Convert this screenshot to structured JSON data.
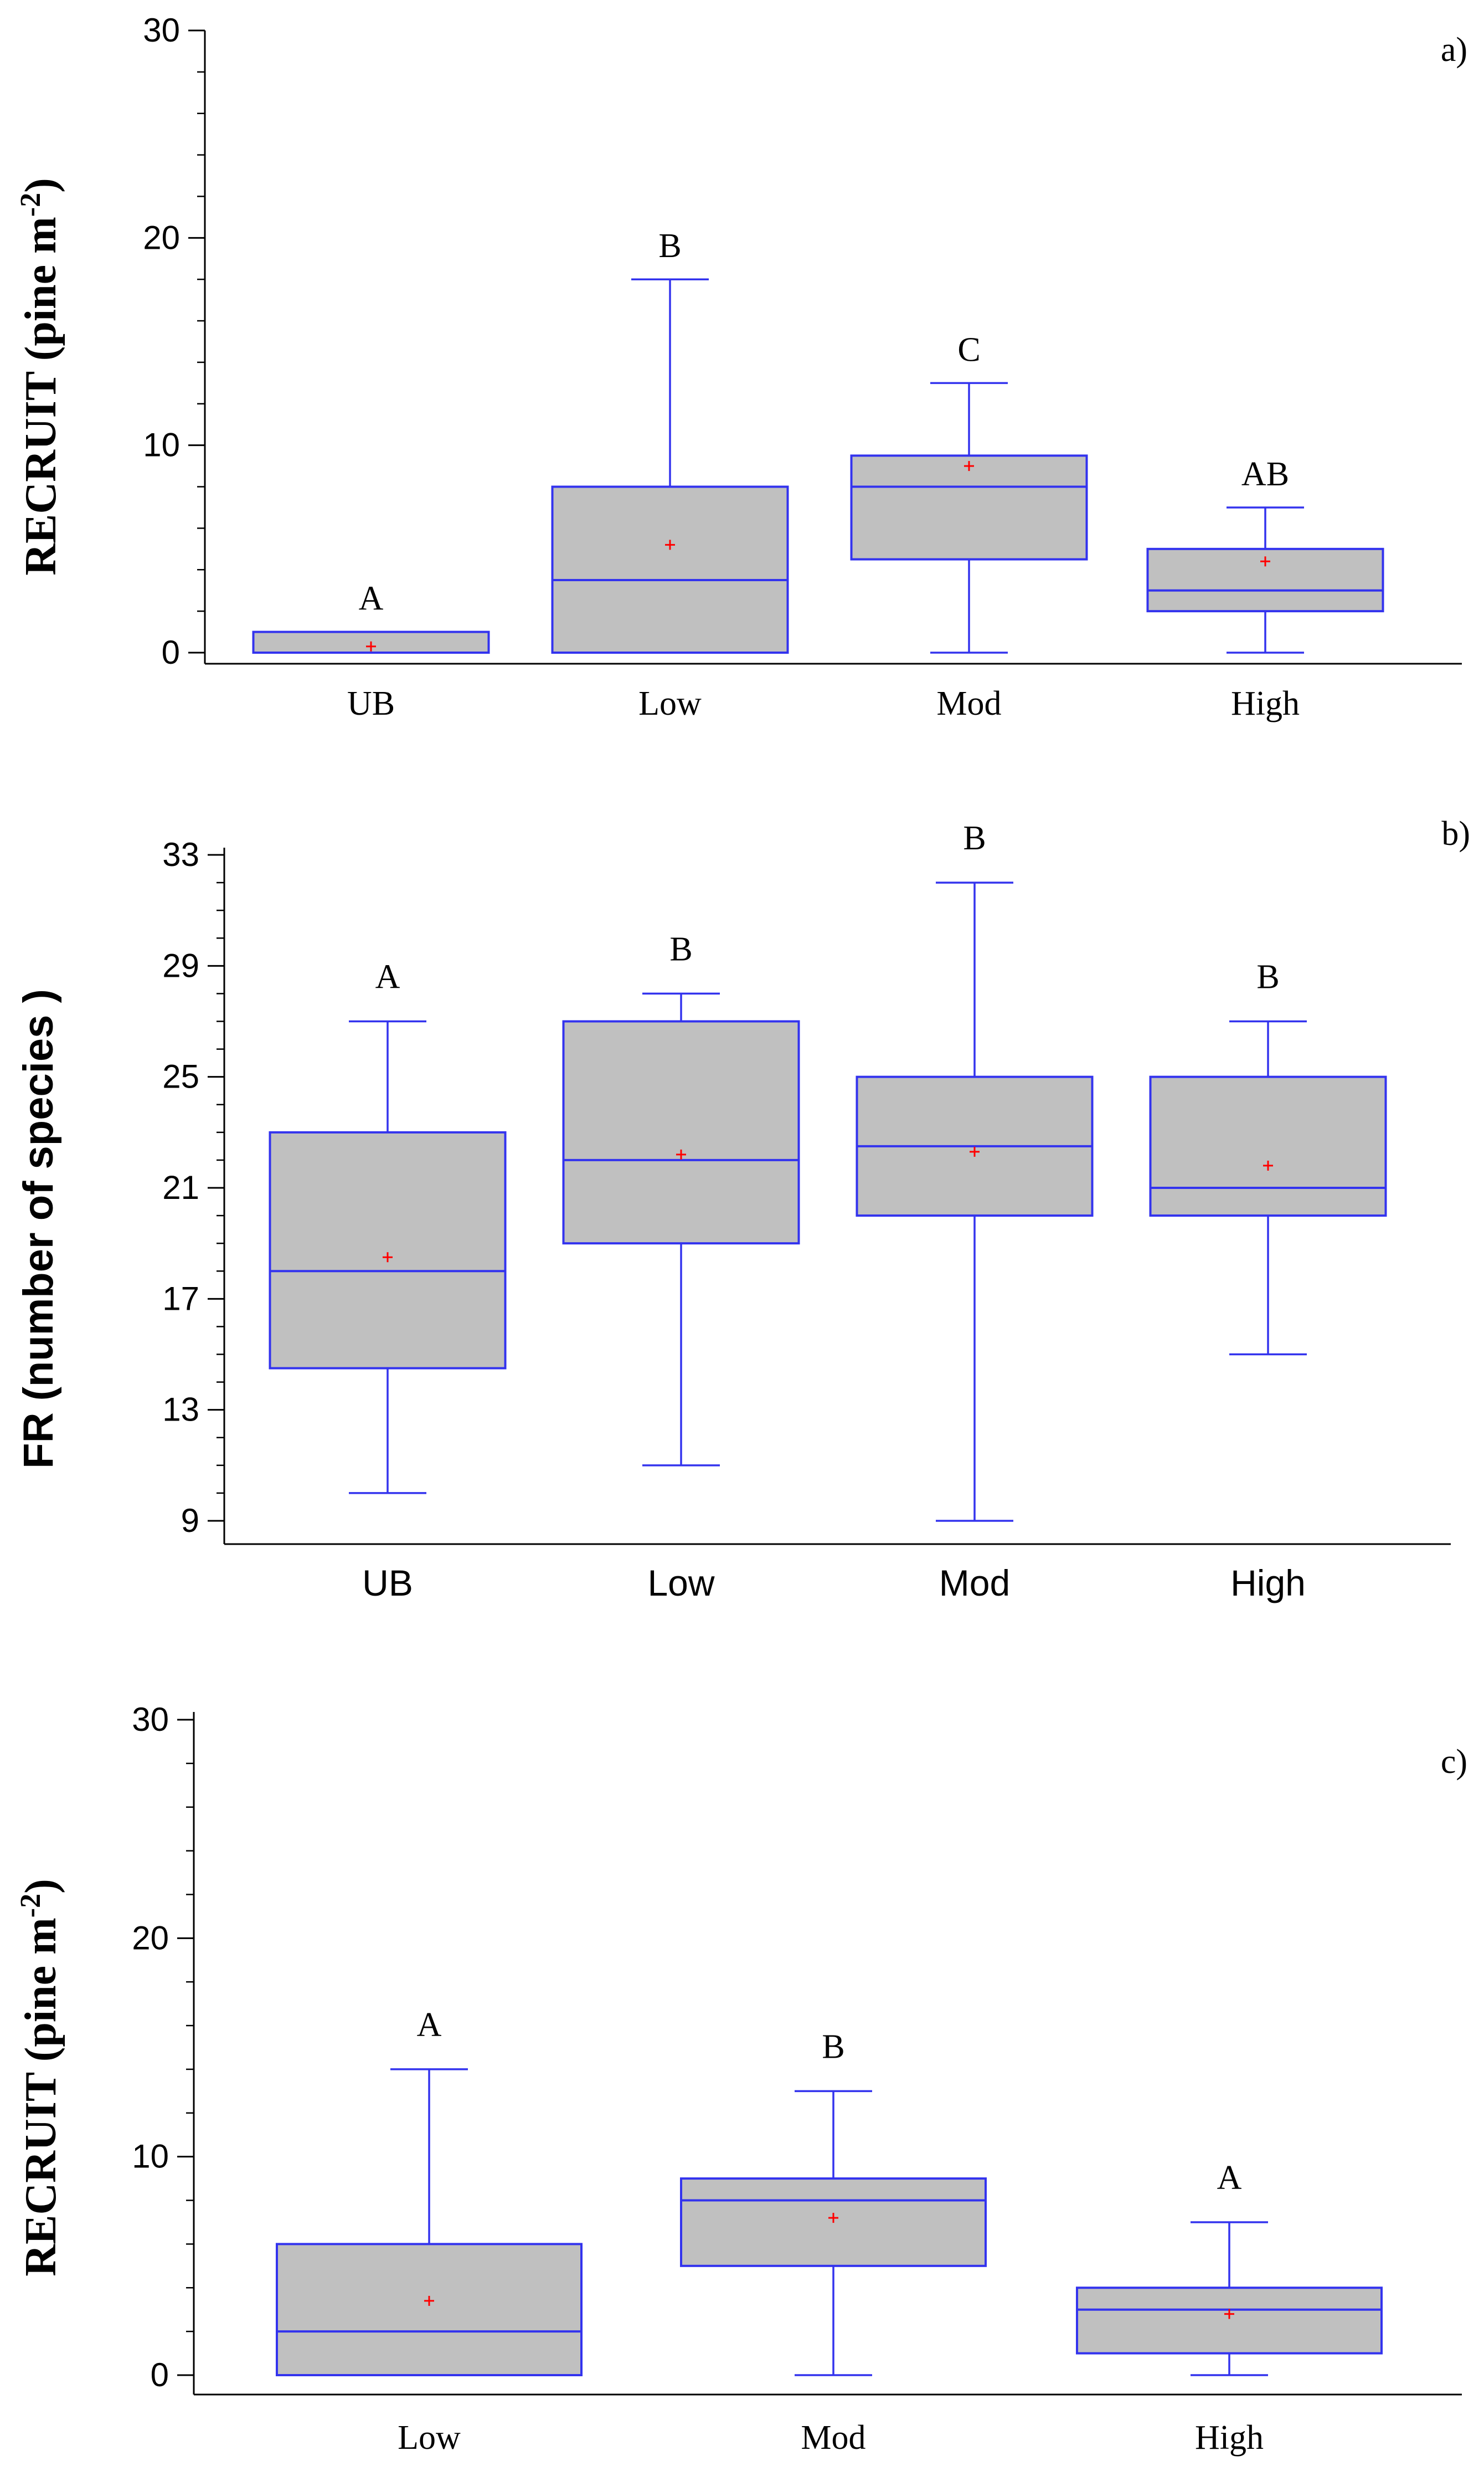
{
  "colors": {
    "box_fill": "#c0c0c0",
    "box_stroke": "#3333ee",
    "mean_marker": "#ff0000",
    "axis": "#000000"
  },
  "chart_data": [
    {
      "type": "box",
      "panel_label": "a)",
      "ylabel_main": "RECRUIT (pine m",
      "ylabel_sup": "-2",
      "ylabel_end": ")",
      "ylim": [
        0,
        30
      ],
      "yticks": [
        0,
        10,
        20,
        30
      ],
      "minor_step": 2,
      "categories": [
        "UB",
        "Low",
        "Mod",
        "High"
      ],
      "boxes": [
        {
          "category": "UB",
          "min": 0,
          "q1": 0,
          "median": 0,
          "q3": 1,
          "max": 1,
          "mean": 0.3,
          "letter": "A"
        },
        {
          "category": "Low",
          "min": 0,
          "q1": 0,
          "median": 3.5,
          "q3": 8,
          "max": 18,
          "mean": 5.2,
          "letter": "B"
        },
        {
          "category": "Mod",
          "min": 0,
          "q1": 4.5,
          "median": 8,
          "q3": 9.5,
          "max": 13,
          "mean": 9,
          "letter": "C"
        },
        {
          "category": "High",
          "min": 0,
          "q1": 2,
          "median": 3,
          "q3": 5,
          "max": 7,
          "mean": 4.4,
          "letter": "AB"
        }
      ]
    },
    {
      "type": "box",
      "panel_label": "b)",
      "ylabel_main": "FR (number of species )",
      "ylim": [
        9,
        33
      ],
      "yticks": [
        9,
        13,
        17,
        21,
        25,
        29,
        33
      ],
      "minor_step": 1,
      "categories": [
        "UB",
        "Low",
        "Mod",
        "High"
      ],
      "boxes": [
        {
          "category": "UB",
          "min": 10,
          "q1": 14.5,
          "median": 18,
          "q3": 23,
          "max": 27,
          "mean": 18.5,
          "letter": "A"
        },
        {
          "category": "Low",
          "min": 11,
          "q1": 19,
          "median": 22,
          "q3": 27,
          "max": 28,
          "mean": 22.2,
          "letter": "B"
        },
        {
          "category": "Mod",
          "min": 9,
          "q1": 20,
          "median": 22.5,
          "q3": 25,
          "max": 32,
          "mean": 22.3,
          "letter": "B"
        },
        {
          "category": "High",
          "min": 15,
          "q1": 20,
          "median": 21,
          "q3": 25,
          "max": 27,
          "mean": 21.8,
          "letter": "B"
        }
      ]
    },
    {
      "type": "box",
      "panel_label": "c)",
      "ylabel_main": "RECRUIT (pine m",
      "ylabel_sup": "-2",
      "ylabel_end": ")",
      "ylim": [
        0,
        30
      ],
      "yticks": [
        0,
        10,
        20,
        30
      ],
      "minor_step": 2,
      "categories": [
        "Low",
        "Mod",
        "High"
      ],
      "boxes": [
        {
          "category": "Low",
          "min": 0,
          "q1": 0,
          "median": 2,
          "q3": 6,
          "max": 14,
          "mean": 3.4,
          "letter": "A"
        },
        {
          "category": "Mod",
          "min": 0,
          "q1": 5,
          "median": 8,
          "q3": 9,
          "max": 13,
          "mean": 7.2,
          "letter": "B"
        },
        {
          "category": "High",
          "min": 0,
          "q1": 1,
          "median": 3,
          "q3": 4,
          "max": 7,
          "mean": 2.8,
          "letter": "A"
        }
      ]
    }
  ]
}
